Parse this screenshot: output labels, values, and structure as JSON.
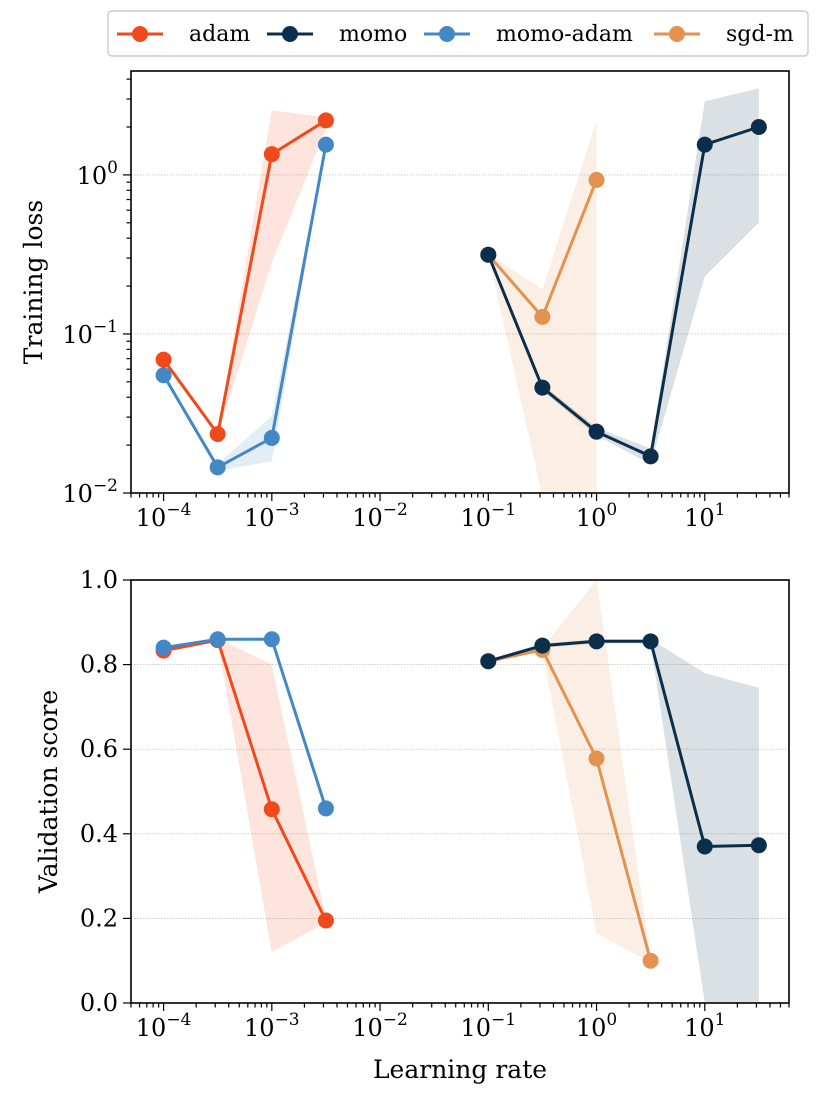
{
  "chart_data": {
    "type": "line",
    "legend": {
      "placement": "top",
      "entries": [
        "adam",
        "momo",
        "momo-adam",
        "sgd-m"
      ]
    },
    "colors": {
      "adam": "#f04a1c",
      "momo": "#0b2f4a",
      "momo-adam": "#4388c5",
      "sgd-m": "#e3924f"
    },
    "xlabel": "Learning rate",
    "xscale": "log",
    "xlim": [
      5e-05,
      60
    ],
    "x_tick_labels": [
      {
        "base": "10",
        "exp": "−4"
      },
      {
        "base": "10",
        "exp": "−3"
      },
      {
        "base": "10",
        "exp": "−2"
      },
      {
        "base": "10",
        "exp": "−1"
      },
      {
        "base": "10",
        "exp": "0"
      },
      {
        "base": "10",
        "exp": "1"
      }
    ],
    "panels": [
      {
        "ylabel": "Training loss",
        "yscale": "log",
        "ylim": [
          0.01,
          4.5
        ],
        "y_tick_labels": [
          {
            "base": "10",
            "exp": "−2"
          },
          {
            "base": "10",
            "exp": "−1"
          },
          {
            "base": "10",
            "exp": "0"
          }
        ],
        "series": [
          {
            "name": "adam",
            "x": [
              0.0001,
              0.000316,
              0.001,
              0.00316
            ],
            "y": [
              0.069,
              0.0235,
              1.35,
              2.2
            ],
            "lo": [
              0.066,
              0.023,
              0.28,
              1.95
            ],
            "hi": [
              0.072,
              0.0245,
              2.55,
              2.3
            ]
          },
          {
            "name": "momo-adam",
            "x": [
              0.0001,
              0.000316,
              0.001,
              0.00316
            ],
            "y": [
              0.055,
              0.0145,
              0.0222,
              1.55
            ],
            "lo": [
              0.053,
              0.0138,
              0.0158,
              1.5
            ],
            "hi": [
              0.057,
              0.0152,
              0.0305,
              1.6
            ]
          },
          {
            "name": "momo",
            "x": [
              0.1,
              0.316,
              1,
              3.16,
              10,
              31.6
            ],
            "y": [
              0.315,
              0.046,
              0.0243,
              0.017,
              1.55,
              2.0
            ],
            "lo": [
              0.31,
              0.044,
              0.023,
              0.0152,
              0.23,
              0.5
            ],
            "hi": [
              0.32,
              0.048,
              0.0258,
              0.019,
              2.9,
              3.5
            ]
          },
          {
            "name": "sgd-m",
            "x": [
              0.1,
              0.316,
              1
            ],
            "y": [
              0.315,
              0.128,
              0.93
            ],
            "lo": [
              0.31,
              0.0095,
              0.0095
            ],
            "hi": [
              0.32,
              0.19,
              2.2
            ]
          }
        ]
      },
      {
        "ylabel": "Validation score",
        "yscale": "linear",
        "ylim": [
          0.0,
          1.0
        ],
        "y_tick_labels": [
          "0.0",
          "0.2",
          "0.4",
          "0.6",
          "0.8",
          "1.0"
        ],
        "series": [
          {
            "name": "adam",
            "x": [
              0.0001,
              0.000316,
              0.001,
              0.00316
            ],
            "y": [
              0.833,
              0.858,
              0.458,
              0.195
            ],
            "lo": [
              0.83,
              0.855,
              0.12,
              0.19
            ],
            "hi": [
              0.836,
              0.862,
              0.8,
              0.2
            ]
          },
          {
            "name": "momo-adam",
            "x": [
              0.0001,
              0.000316,
              0.001,
              0.00316
            ],
            "y": [
              0.84,
              0.86,
              0.86,
              0.46
            ],
            "lo": [
              0.837,
              0.857,
              0.857,
              0.456
            ],
            "hi": [
              0.843,
              0.863,
              0.863,
              0.464
            ]
          },
          {
            "name": "momo",
            "x": [
              0.1,
              0.316,
              1,
              3.16,
              10,
              31.6
            ],
            "y": [
              0.808,
              0.845,
              0.855,
              0.855,
              0.37,
              0.373
            ],
            "lo": [
              0.804,
              0.84,
              0.85,
              0.85,
              0.0,
              0.0
            ],
            "hi": [
              0.812,
              0.85,
              0.86,
              0.86,
              0.78,
              0.745
            ]
          },
          {
            "name": "sgd-m",
            "x": [
              0.1,
              0.316,
              1,
              3.16
            ],
            "y": [
              0.808,
              0.835,
              0.578,
              0.1
            ],
            "lo": [
              0.804,
              0.83,
              0.165,
              0.095
            ],
            "hi": [
              0.812,
              0.84,
              1.0,
              0.105
            ]
          }
        ]
      }
    ]
  }
}
